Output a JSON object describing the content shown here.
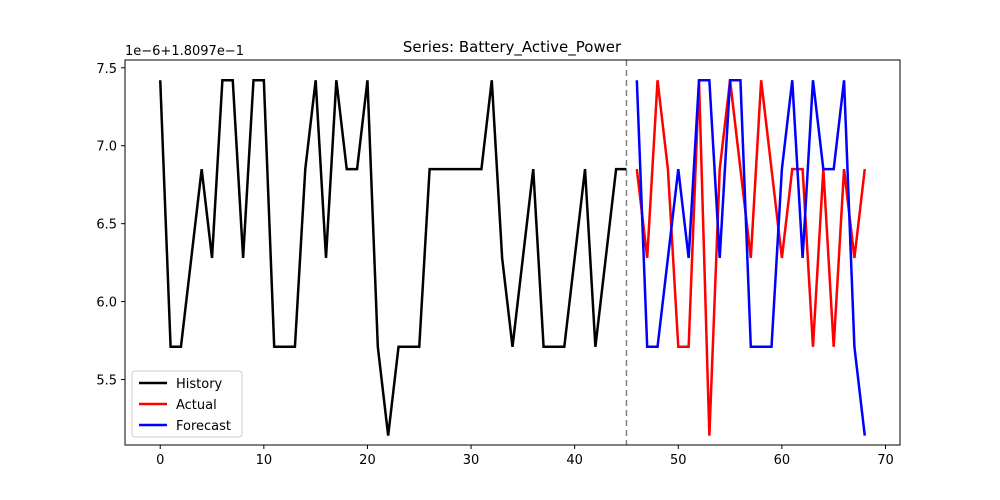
{
  "chart_data": {
    "type": "line",
    "title": "Series: Battery_Active_Power",
    "y_offset_label": "1e−6+1.8097e−1",
    "xlabel": "",
    "ylabel": "",
    "xlim": [
      -3.4,
      71.4
    ],
    "ylim": [
      5.08,
      7.55
    ],
    "x_ticks": [
      0,
      10,
      20,
      30,
      40,
      50,
      60,
      70
    ],
    "x_tick_labels": [
      "0",
      "10",
      "20",
      "30",
      "40",
      "50",
      "60",
      "70"
    ],
    "y_ticks": [
      5.5,
      6.0,
      6.5,
      7.0,
      7.5
    ],
    "y_tick_labels": [
      "5.5",
      "6.0",
      "6.5",
      "7.0",
      "7.5"
    ],
    "grid": false,
    "legend_position": "lower-left",
    "forecast_start_marker_x": 45,
    "series": [
      {
        "name": "History",
        "color": "#000000",
        "x": [
          0,
          1,
          2,
          3,
          4,
          5,
          6,
          7,
          8,
          9,
          10,
          11,
          12,
          13,
          14,
          15,
          16,
          17,
          18,
          19,
          20,
          21,
          22,
          23,
          24,
          25,
          26,
          27,
          28,
          29,
          30,
          31,
          32,
          33,
          34,
          35,
          36,
          37,
          38,
          39,
          40,
          41,
          42,
          43,
          44,
          45
        ],
        "values": [
          7.42,
          5.71,
          5.71,
          6.28,
          6.85,
          6.28,
          7.42,
          7.42,
          6.28,
          7.42,
          7.42,
          5.71,
          5.71,
          5.71,
          6.85,
          7.42,
          6.28,
          7.42,
          6.85,
          6.85,
          7.42,
          5.71,
          5.14,
          5.71,
          5.71,
          5.71,
          6.85,
          6.85,
          6.85,
          6.85,
          6.85,
          6.85,
          7.42,
          6.28,
          5.71,
          6.28,
          6.85,
          5.71,
          5.71,
          5.71,
          6.28,
          6.85,
          5.71,
          6.28,
          6.85,
          6.85
        ]
      },
      {
        "name": "Actual",
        "color": "#ff0000",
        "x": [
          46,
          47,
          48,
          49,
          50,
          51,
          52,
          53,
          54,
          55,
          56,
          57,
          58,
          59,
          60,
          61,
          62,
          63,
          64,
          65,
          66,
          67,
          68
        ],
        "values": [
          6.85,
          6.28,
          7.42,
          6.85,
          5.71,
          5.71,
          7.42,
          5.14,
          6.85,
          7.42,
          6.85,
          6.28,
          7.42,
          6.85,
          6.28,
          6.85,
          6.85,
          5.71,
          6.85,
          5.71,
          6.85,
          6.28,
          6.85
        ]
      },
      {
        "name": "Forecast",
        "color": "#0000ff",
        "x": [
          46,
          47,
          48,
          49,
          50,
          51,
          52,
          53,
          54,
          55,
          56,
          57,
          58,
          59,
          60,
          61,
          62,
          63,
          64,
          65,
          66,
          67,
          68
        ],
        "values": [
          7.42,
          5.71,
          5.71,
          6.28,
          6.85,
          6.28,
          7.42,
          7.42,
          6.28,
          7.42,
          7.42,
          5.71,
          5.71,
          5.71,
          6.85,
          7.42,
          6.28,
          7.42,
          6.85,
          6.85,
          7.42,
          5.71,
          5.14
        ]
      }
    ]
  }
}
